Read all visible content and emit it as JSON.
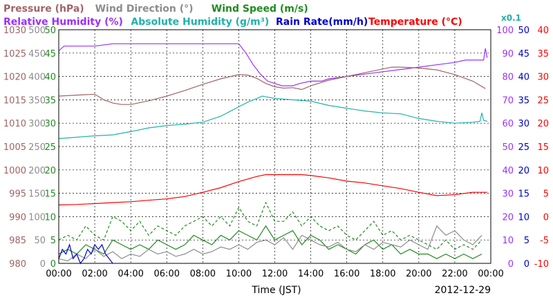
{
  "chart_data": {
    "type": "line",
    "legend": {
      "row1": [
        {
          "name": "Pressure (hPa)",
          "color": "#a06464"
        },
        {
          "name": "Wind Direction (°)",
          "color": "#8c8c8c"
        },
        {
          "name": "Wind Speed (m/s)",
          "color": "#1e8c1e"
        }
      ],
      "row2": [
        {
          "name": "Relative Humidity (%)",
          "color": "#9b30ff"
        },
        {
          "name": "Absolute Humidity (g/m³)",
          "color": "#20b2aa"
        },
        {
          "name": "Rain Rate(mm/h)",
          "color": "#0000cd"
        },
        {
          "name": "Temperature (°C)",
          "color": "#ff0000"
        }
      ],
      "extra": "x0.1"
    },
    "xlabel": "Time (JST)",
    "date": "2012-12-29",
    "x_ticks": [
      "00:00",
      "02:00",
      "04:00",
      "06:00",
      "08:00",
      "10:00",
      "12:00",
      "14:00",
      "16:00",
      "18:00",
      "20:00",
      "22:00",
      "00:00"
    ],
    "xlim": [
      0,
      24
    ],
    "grid": true,
    "axes": [
      {
        "id": "pressure",
        "side": "left",
        "color": "#a06464",
        "ylim": [
          980,
          1030
        ],
        "ticks": [
          "980",
          "985",
          "990",
          "995",
          "1000",
          "1005",
          "1010",
          "1015",
          "1020",
          "1025",
          "1030"
        ]
      },
      {
        "id": "wind_dir",
        "side": "left",
        "color": "#8c8c8c",
        "ylim": [
          0,
          500
        ],
        "ticks": [
          "0",
          "50",
          "100",
          "150",
          "200",
          "250",
          "300",
          "350",
          "400",
          "450",
          "500"
        ]
      },
      {
        "id": "wind_speed",
        "side": "left",
        "color": "#1e8c1e",
        "ylim": [
          0,
          50
        ],
        "ticks": [
          "0",
          "5",
          "10",
          "15",
          "20",
          "25",
          "30",
          "35",
          "40",
          "45",
          "50"
        ]
      },
      {
        "id": "humidity",
        "side": "right",
        "color": "#9b30ff",
        "ylim": [
          0,
          100
        ],
        "ticks": [
          "0",
          "10",
          "20",
          "30",
          "40",
          "50",
          "60",
          "70",
          "80",
          "90",
          "100"
        ]
      },
      {
        "id": "rain",
        "side": "right",
        "color": "#0000cd",
        "ylim": [
          0,
          50
        ],
        "ticks": [
          "0",
          "5",
          "10",
          "15",
          "20",
          "25",
          "30",
          "35",
          "40",
          "45",
          "50"
        ]
      },
      {
        "id": "temp",
        "side": "right",
        "color": "#ff0000",
        "ylim": [
          -10,
          40
        ],
        "ticks": [
          "-10",
          "-5",
          "0",
          "5",
          "10",
          "15",
          "20",
          "25",
          "30",
          "35",
          "40"
        ]
      }
    ],
    "series": [
      {
        "name": "Relative Humidity (%)",
        "axis": "humidity",
        "color": "#9b30ff",
        "x": [
          0,
          0.3,
          1,
          2,
          3,
          4,
          5,
          6,
          7,
          8,
          9,
          10,
          10.4,
          10.8,
          11.2,
          11.6,
          12,
          12.4,
          13,
          13.4,
          14,
          14.6,
          15,
          16,
          17,
          18,
          19,
          20,
          21,
          22,
          22.6,
          23,
          23.4,
          23.6,
          23.7,
          23.8
        ],
        "y": [
          91,
          93,
          93,
          93,
          94,
          94,
          94,
          94,
          94,
          94,
          94,
          94,
          90,
          85,
          81,
          78,
          77,
          76,
          76,
          77,
          78,
          78,
          79,
          80,
          81,
          82,
          83,
          84,
          85,
          86,
          87,
          87,
          87,
          87,
          92,
          88
        ]
      },
      {
        "name": "Pressure (hPa)",
        "axis": "pressure",
        "color": "#a06464",
        "x": [
          0,
          1,
          2,
          2.5,
          3,
          3.5,
          4,
          5,
          6,
          7,
          8,
          9,
          10,
          10.5,
          11,
          11.5,
          12,
          12.5,
          13,
          13.5,
          14,
          15,
          16,
          17,
          18,
          18.5,
          19,
          20,
          21,
          22,
          23,
          23.7
        ],
        "y": [
          1015.8,
          1016.0,
          1016.2,
          1015.0,
          1014.3,
          1014.0,
          1014.0,
          1014.8,
          1015.8,
          1017.0,
          1018.3,
          1019.5,
          1020.4,
          1020.3,
          1019.6,
          1018.5,
          1017.8,
          1017.5,
          1017.6,
          1017.2,
          1018.0,
          1019.2,
          1020.0,
          1020.8,
          1021.6,
          1022.0,
          1022.0,
          1021.8,
          1021.4,
          1020.4,
          1019.0,
          1017.4
        ]
      },
      {
        "name": "Absolute Humidity (g/m³)",
        "axis": "wind_speed",
        "color": "#20b2aa",
        "x": [
          0,
          1,
          2,
          3,
          4,
          5,
          6,
          7,
          8,
          9,
          9.5,
          10,
          10.5,
          11,
          11.3,
          12,
          13,
          14,
          15,
          16,
          17,
          18,
          19,
          20,
          21,
          22,
          23,
          23.4,
          23.5,
          23.6,
          23.8
        ],
        "y": [
          26.7,
          27.0,
          27.3,
          27.5,
          28.2,
          29.0,
          29.5,
          29.8,
          30.2,
          31.5,
          32.5,
          33.5,
          34.5,
          35.3,
          35.8,
          35.3,
          35.0,
          34.7,
          33.8,
          33.2,
          32.6,
          32.2,
          32.0,
          31.0,
          30.4,
          30.0,
          30.2,
          30.4,
          32.2,
          30.6,
          30.4
        ]
      },
      {
        "name": "Temperature (°C)",
        "axis": "temp",
        "color": "#ff0000",
        "x": [
          0,
          1,
          2,
          3,
          4,
          5,
          6,
          7,
          8,
          9,
          10,
          11,
          11.5,
          12,
          13,
          13.5,
          14,
          15,
          16,
          17,
          18,
          19,
          20,
          21,
          22,
          23,
          23.8
        ],
        "y": [
          2.5,
          2.6,
          2.8,
          3.0,
          3.2,
          3.5,
          3.8,
          4.3,
          5.2,
          6.2,
          7.5,
          8.6,
          9.0,
          9.0,
          9.0,
          9.0,
          8.8,
          8.3,
          7.6,
          7.2,
          6.6,
          6.0,
          5.2,
          4.5,
          4.7,
          5.2,
          5.2
        ]
      },
      {
        "name": "Wind Speed (m/s)",
        "axis": "wind_speed",
        "color": "#1e8c1e",
        "dash": "",
        "x": [
          0,
          0.5,
          1,
          1.5,
          2,
          2.5,
          3,
          3.5,
          4,
          4.5,
          5,
          5.5,
          6,
          6.5,
          7,
          7.5,
          8,
          8.5,
          9,
          9.5,
          10,
          10.5,
          11,
          11.5,
          12,
          12.5,
          13,
          13.5,
          14,
          14.5,
          15,
          15.5,
          16,
          16.5,
          17,
          17.5,
          18,
          18.5,
          19,
          19.5,
          20,
          20.5,
          21,
          21.5,
          22,
          22.5,
          23,
          23.5
        ],
        "y": [
          2,
          3,
          2,
          4,
          3,
          2,
          5,
          4,
          3,
          4,
          3,
          5,
          4,
          3,
          4,
          6,
          5,
          4,
          6,
          5,
          7,
          6,
          5,
          8,
          5,
          6,
          7,
          4,
          6,
          5,
          3,
          4,
          3,
          2,
          4,
          5,
          3,
          4,
          2,
          3,
          2,
          2,
          1,
          2,
          1,
          2,
          1,
          2
        ]
      },
      {
        "name": "Wind Speed gust",
        "axis": "wind_speed",
        "color": "#1e8c1e",
        "dash": "4,3",
        "x": [
          0,
          0.5,
          1,
          1.5,
          2,
          2.5,
          3,
          3.5,
          4,
          4.5,
          5,
          5.5,
          6,
          6.5,
          7,
          7.5,
          8,
          8.5,
          9,
          9.5,
          10,
          10.5,
          11,
          11.5,
          12,
          12.5,
          13,
          13.5,
          14,
          14.5,
          15,
          15.5,
          16,
          16.5,
          17,
          17.5,
          18,
          18.5,
          19,
          19.5,
          20,
          20.5,
          21,
          21.5,
          22,
          22.5,
          23,
          23.5
        ],
        "y": [
          5,
          6,
          5,
          8,
          6,
          5,
          10,
          9,
          7,
          9,
          6,
          8,
          7,
          6,
          8,
          9,
          10,
          8,
          10,
          8,
          12,
          9,
          8,
          13,
          9,
          9,
          11,
          8,
          10,
          8,
          7,
          8,
          6,
          5,
          7,
          9,
          6,
          7,
          5,
          6,
          5,
          4,
          3,
          5,
          3,
          4,
          3,
          5
        ]
      },
      {
        "name": "Wind Direction (°)",
        "axis": "wind_dir",
        "color": "#8c8c8c",
        "x": [
          0,
          0.5,
          1,
          1.5,
          2,
          2.5,
          3,
          3.5,
          4,
          4.5,
          5,
          5.5,
          6,
          6.5,
          7,
          7.5,
          8,
          8.5,
          9,
          9.5,
          10,
          10.5,
          11,
          11.5,
          12,
          12.5,
          13,
          13.5,
          14,
          14.5,
          15,
          15.5,
          16,
          16.5,
          17,
          17.5,
          18,
          18.5,
          19,
          19.5,
          20,
          20.5,
          21,
          21.5,
          22,
          22.5,
          23,
          23.5
        ],
        "y": [
          10,
          5,
          20,
          10,
          30,
          15,
          25,
          10,
          20,
          15,
          30,
          20,
          25,
          15,
          20,
          30,
          20,
          25,
          35,
          30,
          40,
          30,
          45,
          50,
          40,
          55,
          30,
          60,
          50,
          40,
          35,
          45,
          30,
          25,
          40,
          30,
          45,
          40,
          35,
          50,
          40,
          30,
          80,
          60,
          70,
          50,
          40,
          60
        ]
      },
      {
        "name": "Rain Rate(mm/h)",
        "axis": "rain",
        "color": "#0000cd",
        "x": [
          0,
          0.2,
          0.4,
          0.6,
          0.8,
          1,
          1.2,
          1.4,
          1.6,
          1.8,
          2,
          2.2,
          2.4,
          2.6,
          2.8,
          3
        ],
        "y": [
          1,
          3,
          2,
          4,
          1,
          2,
          0,
          1,
          3,
          2,
          4,
          3,
          4,
          2,
          1,
          0
        ]
      }
    ]
  }
}
